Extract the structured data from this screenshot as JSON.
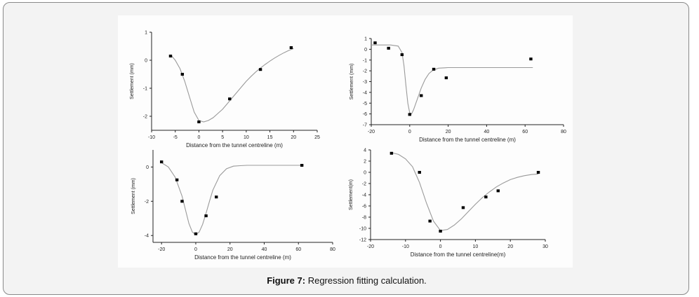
{
  "caption": {
    "label": "Figure 7:",
    "text": " Regression fitting calculation."
  },
  "colors": {
    "frame_border": "#8a8a8a",
    "frame_bg": "#f3f3f3",
    "figure_bg": "#fdfdfd",
    "axis": "#222222",
    "points": "#000000",
    "fit_curve": "#9a9a9a"
  },
  "chart_data": [
    {
      "type": "scatter",
      "title": "",
      "xlabel": "Distance from the tunnel centreline (m)",
      "ylabel": "Settlement (mm)",
      "xlim": [
        -10,
        25
      ],
      "ylim": [
        -2.5,
        1
      ],
      "xticks": [
        -10,
        -5,
        0,
        5,
        10,
        15,
        20,
        25
      ],
      "yticks": [
        1,
        0,
        -1,
        -2
      ],
      "grid": false,
      "series": [
        {
          "kind": "points",
          "x": [
            -6,
            -3.5,
            0,
            6.5,
            13,
            19.5
          ],
          "y": [
            0.15,
            -0.5,
            -2.2,
            -1.38,
            -0.33,
            0.45
          ]
        },
        {
          "kind": "fit",
          "x": [
            -6,
            -5,
            -4,
            -3,
            -2,
            -1,
            0,
            1,
            2,
            3,
            4,
            5,
            6,
            7,
            8,
            9,
            10,
            11,
            12,
            13,
            14,
            15,
            16,
            17,
            18,
            19,
            20
          ],
          "y": [
            0.2,
            0.0,
            -0.3,
            -0.75,
            -1.3,
            -1.85,
            -2.15,
            -2.2,
            -2.15,
            -2.05,
            -1.9,
            -1.75,
            -1.55,
            -1.35,
            -1.15,
            -0.95,
            -0.75,
            -0.58,
            -0.42,
            -0.28,
            -0.15,
            -0.03,
            0.08,
            0.18,
            0.27,
            0.35,
            0.42
          ]
        }
      ]
    },
    {
      "type": "scatter",
      "title": "",
      "xlabel": "Distance from the tunnel centreline (m)",
      "ylabel": "Settlement (mm)",
      "xlim": [
        -20,
        80
      ],
      "ylim": [
        -7,
        1
      ],
      "xticks": [
        -20,
        0,
        20,
        40,
        60,
        80
      ],
      "yticks": [
        1,
        0,
        -1,
        -2,
        -3,
        -4,
        -5,
        -6,
        -7
      ],
      "grid": false,
      "series": [
        {
          "kind": "points",
          "x": [
            -18,
            -11,
            -4,
            0,
            6,
            12.5,
            19,
            63
          ],
          "y": [
            0.6,
            0.1,
            -0.5,
            -6.05,
            -4.3,
            -1.85,
            -2.65,
            -0.9
          ]
        },
        {
          "kind": "fit",
          "x": [
            -20,
            -10,
            -6,
            -4,
            -3,
            -2,
            -1,
            0,
            1,
            2,
            4,
            6,
            8,
            10,
            12,
            15,
            20,
            30,
            45,
            64
          ],
          "y": [
            0.4,
            0.4,
            0.3,
            -0.3,
            -1.5,
            -3.3,
            -5.0,
            -5.9,
            -6.0,
            -5.6,
            -4.6,
            -3.6,
            -2.8,
            -2.25,
            -1.95,
            -1.75,
            -1.7,
            -1.7,
            -1.7,
            -1.7
          ]
        }
      ]
    },
    {
      "type": "scatter",
      "title": "",
      "xlabel": "Distance from the tunnel centreline (m)",
      "ylabel": "Settlement (mm)",
      "xlim": [
        -25,
        80
      ],
      "ylim": [
        -4.4,
        1
      ],
      "xticks": [
        -20,
        0,
        20,
        40,
        60,
        80
      ],
      "yticks": [
        0,
        -2,
        -4
      ],
      "grid": false,
      "series": [
        {
          "kind": "points",
          "x": [
            -20,
            -11,
            -8,
            0,
            6,
            12,
            62
          ],
          "y": [
            0.3,
            -0.75,
            -2.0,
            -3.9,
            -2.85,
            -1.75,
            0.1
          ]
        },
        {
          "kind": "fit",
          "x": [
            -20,
            -16,
            -12,
            -8,
            -6,
            -4,
            -2,
            0,
            2,
            4,
            6,
            8,
            10,
            14,
            18,
            22,
            26,
            30,
            40,
            63
          ],
          "y": [
            0.25,
            0.0,
            -0.6,
            -1.7,
            -2.5,
            -3.3,
            -3.8,
            -3.95,
            -3.8,
            -3.35,
            -2.7,
            -2.0,
            -1.35,
            -0.5,
            -0.1,
            0.05,
            0.08,
            0.1,
            0.1,
            0.1
          ]
        }
      ]
    },
    {
      "type": "scatter",
      "title": "",
      "xlabel": "Distance from the tunnel centreline(m)",
      "ylabel": "Settlement(m)",
      "xlim": [
        -20,
        30
      ],
      "ylim": [
        -12,
        4
      ],
      "xticks": [
        -20,
        -10,
        0,
        10,
        20,
        30
      ],
      "yticks": [
        4,
        2,
        0,
        -2,
        -4,
        -6,
        -8,
        -10,
        -12
      ],
      "grid": false,
      "series": [
        {
          "kind": "points",
          "x": [
            -14,
            -6,
            -3,
            0,
            6.5,
            13,
            16.5,
            28
          ],
          "y": [
            3.4,
            0.0,
            -8.7,
            -10.5,
            -6.3,
            -4.4,
            -3.3,
            0.0
          ]
        },
        {
          "kind": "fit",
          "x": [
            -14,
            -12,
            -10,
            -8,
            -6,
            -4,
            -2,
            0,
            2,
            4,
            6,
            8,
            10,
            12,
            14,
            16,
            18,
            20,
            22,
            24,
            26,
            28
          ],
          "y": [
            3.5,
            3.2,
            2.4,
            1.0,
            -1.8,
            -5.5,
            -8.7,
            -10.4,
            -10.2,
            -9.4,
            -8.3,
            -7.0,
            -5.7,
            -4.5,
            -3.5,
            -2.6,
            -1.9,
            -1.3,
            -0.9,
            -0.6,
            -0.4,
            -0.3
          ]
        }
      ]
    }
  ]
}
